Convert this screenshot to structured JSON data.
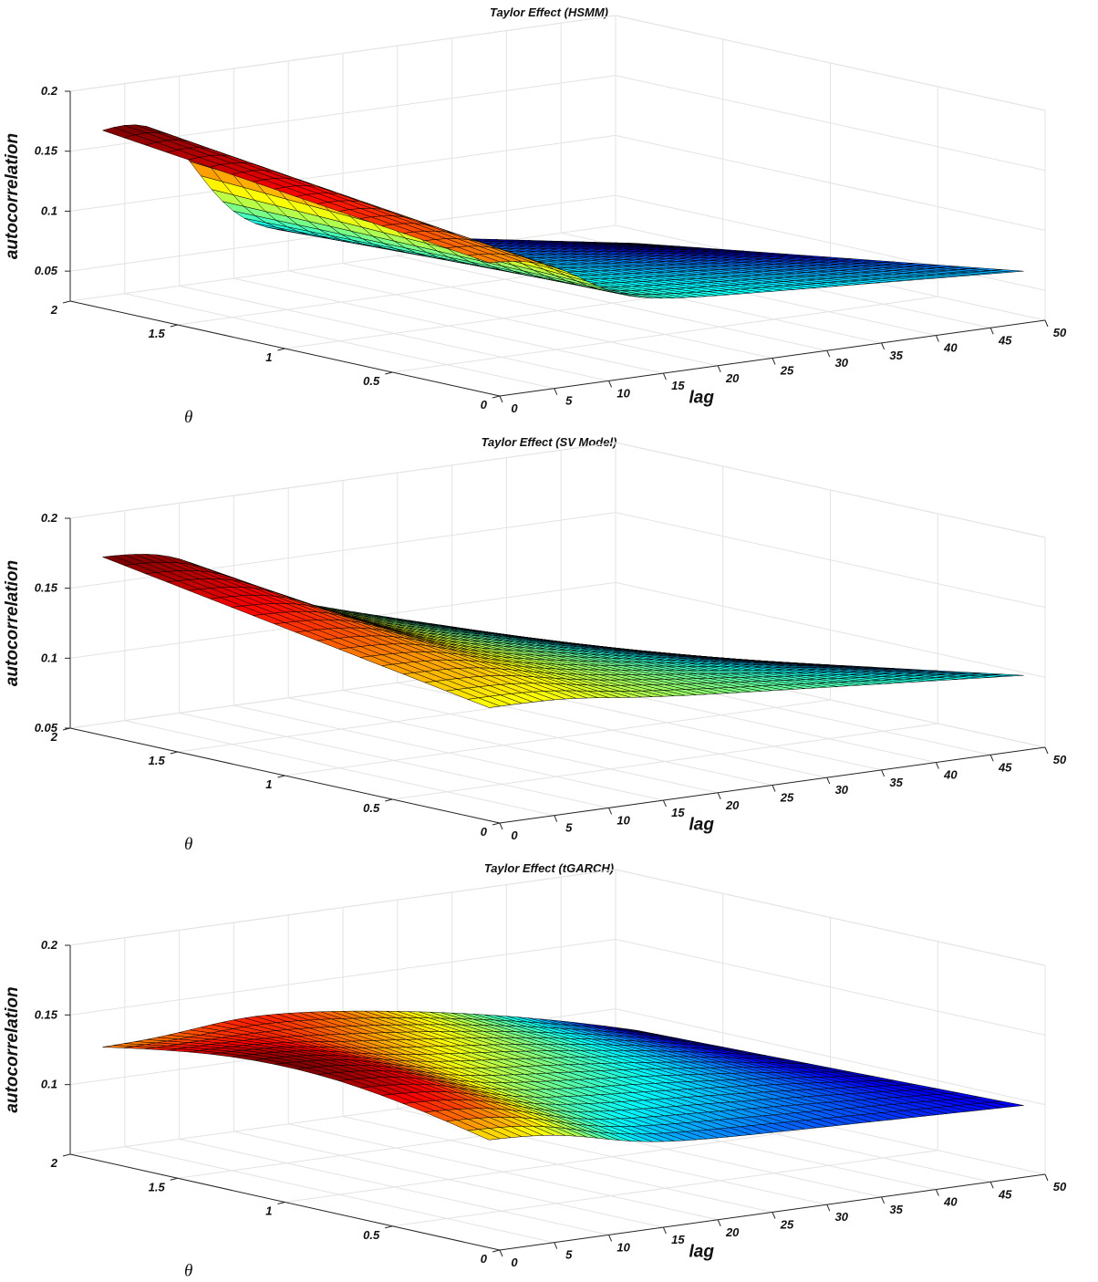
{
  "chart_data": [
    {
      "type": "surface",
      "title": "Taylor Effect (HSMM)",
      "xlabel": "lag",
      "ylabel": "θ",
      "zlabel": "autocorrelation",
      "x_ticks": [
        "0",
        "5",
        "10",
        "15",
        "20",
        "25",
        "30",
        "35",
        "40",
        "45",
        "50"
      ],
      "y_ticks": [
        "0",
        "0.5",
        "1",
        "1.5",
        "2"
      ],
      "z_ticks": [
        "0.05",
        "0.1",
        "0.15",
        "0.2"
      ],
      "xlim": [
        0,
        50
      ],
      "ylim": [
        0,
        2
      ],
      "zlim": [
        0.025,
        0.2
      ],
      "lag_range": [
        1,
        50
      ],
      "theta_range": [
        0.1,
        1.9
      ],
      "surface": {
        "description_points": [
          {
            "lag": 1,
            "theta": 1.9,
            "autocorrelation": 0.172
          },
          {
            "lag": 1,
            "theta": 0.1,
            "autocorrelation": 0.13
          },
          {
            "lag": 50,
            "theta": 1.9,
            "autocorrelation": 0.015
          },
          {
            "lag": 50,
            "theta": 0.1,
            "autocorrelation": 0.062
          }
        ]
      },
      "colormap": "jet",
      "grid": true
    },
    {
      "type": "surface",
      "title": "Taylor Effect (SV Model)",
      "xlabel": "lag",
      "ylabel": "θ",
      "zlabel": "autocorrelation",
      "x_ticks": [
        "0",
        "5",
        "10",
        "15",
        "20",
        "25",
        "30",
        "35",
        "40",
        "45",
        "50"
      ],
      "y_ticks": [
        "0",
        "0.5",
        "1",
        "1.5",
        "2"
      ],
      "z_ticks": [
        "0.05",
        "0.1",
        "0.15",
        "0.2"
      ],
      "xlim": [
        0,
        50
      ],
      "ylim": [
        0,
        2
      ],
      "zlim": [
        0.05,
        0.2
      ],
      "lag_range": [
        1,
        50
      ],
      "theta_range": [
        0.1,
        1.9
      ],
      "surface": {
        "description_points": [
          {
            "lag": 1,
            "theta": 1.9,
            "autocorrelation": 0.175
          },
          {
            "lag": 1,
            "theta": 0.1,
            "autocorrelation": 0.128
          },
          {
            "lag": 50,
            "theta": 1.9,
            "autocorrelation": 0.05
          },
          {
            "lag": 50,
            "theta": 0.1,
            "autocorrelation": 0.095
          }
        ]
      },
      "colormap": "jet",
      "grid": true
    },
    {
      "type": "surface",
      "title": "Taylor Effect (tGARCH)",
      "xlabel": "lag",
      "ylabel": "θ",
      "zlabel": "autocorrelation",
      "x_ticks": [
        "0",
        "5",
        "10",
        "15",
        "20",
        "25",
        "30",
        "35",
        "40",
        "45",
        "50"
      ],
      "y_ticks": [
        "0",
        "0.5",
        "1",
        "1.5",
        "2"
      ],
      "z_ticks": [
        "0.1",
        "0.15",
        "0.2"
      ],
      "xlim": [
        0,
        50
      ],
      "ylim": [
        0,
        2
      ],
      "zlim": [
        0.05,
        0.2
      ],
      "lag_range": [
        1,
        50
      ],
      "theta_range": [
        0.1,
        1.9
      ],
      "surface": {
        "description_points": [
          {
            "lag": 1,
            "theta": 1.9,
            "autocorrelation": 0.129
          },
          {
            "lag": 1,
            "theta": 0.1,
            "autocorrelation": 0.125
          },
          {
            "lag": 50,
            "theta": 1.9,
            "autocorrelation": 0.088
          },
          {
            "lag": 50,
            "theta": 0.1,
            "autocorrelation": 0.098
          }
        ]
      },
      "colormap": "jet",
      "grid": true
    }
  ]
}
